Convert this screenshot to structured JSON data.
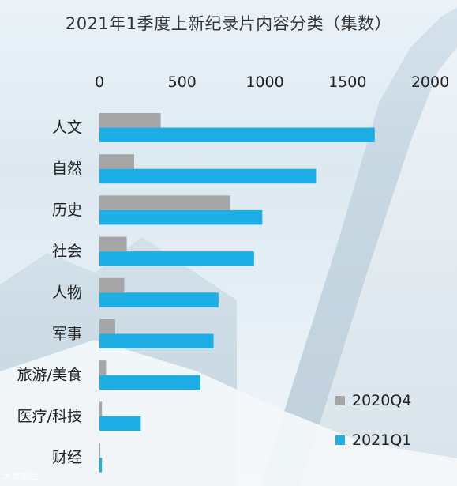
{
  "chart_data": {
    "type": "bar",
    "orientation": "horizontal",
    "title": "2021年1季度上新纪录片内容分类（集数）",
    "categories": [
      "人文",
      "自然",
      "历史",
      "社会",
      "人物",
      "军事",
      "旅游/美食",
      "医疗/科技",
      "财经"
    ],
    "series": [
      {
        "name": "2020Q4",
        "color": "#a6a6a6",
        "values": [
          370,
          210,
          790,
          165,
          150,
          95,
          40,
          15,
          5
        ]
      },
      {
        "name": "2021Q1",
        "color": "#1eaee6",
        "values": [
          1665,
          1310,
          985,
          935,
          720,
          690,
          610,
          250,
          15
        ]
      }
    ],
    "xlim": [
      0,
      2000
    ],
    "xticks": [
      "0",
      "500",
      "1000",
      "1500",
      "2000"
    ],
    "grid": false,
    "legend": "bottom-right"
  },
  "watermark": "大数据组"
}
